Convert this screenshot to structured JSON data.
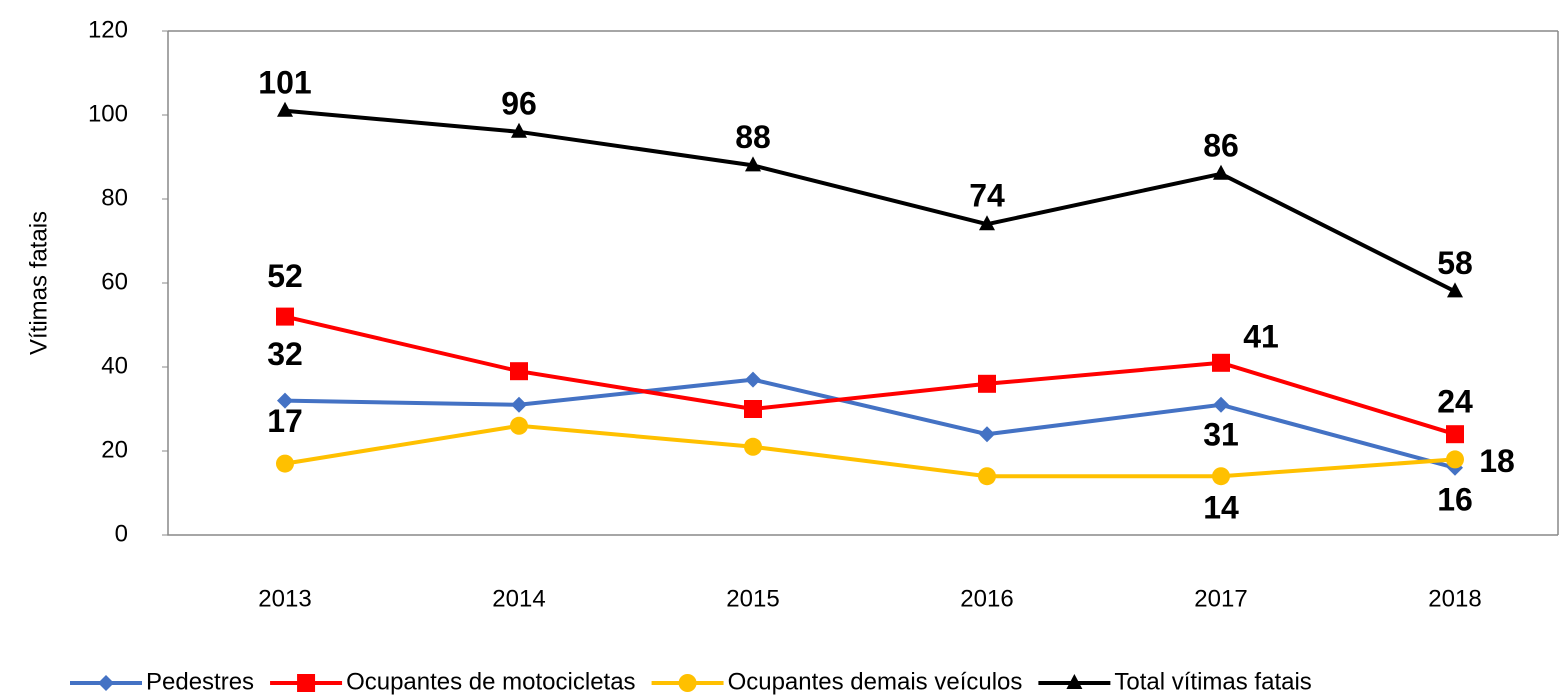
{
  "chart_data": {
    "type": "line",
    "y_label": "Vítimas fatais",
    "categories": [
      "2013",
      "2014",
      "2015",
      "2016",
      "2017",
      "2018"
    ],
    "series": [
      {
        "name": "Pedestres",
        "color": "#4472c4",
        "marker": "diamond",
        "values": [
          32,
          31,
          37,
          24,
          31,
          16
        ],
        "labels_at": [
          0,
          4,
          5
        ]
      },
      {
        "name": "Ocupantes de motocicletas",
        "color": "#ff0000",
        "marker": "square",
        "values": [
          52,
          39,
          30,
          36,
          41,
          24
        ],
        "labels_at": [
          0,
          4,
          5
        ]
      },
      {
        "name": "Ocupantes demais veículos",
        "color": "#ffc000",
        "marker": "circle",
        "values": [
          17,
          26,
          21,
          14,
          14,
          18
        ],
        "labels_at": [
          0,
          4,
          5
        ]
      },
      {
        "name": "Total vítimas fatais",
        "color": "#000000",
        "marker": "triangle",
        "values": [
          101,
          96,
          88,
          74,
          86,
          58
        ],
        "labels_at": [
          0,
          1,
          2,
          3,
          4,
          5
        ]
      }
    ],
    "ylim": [
      0,
      120
    ],
    "yticks": [
      0,
      20,
      40,
      60,
      80,
      100,
      120
    ],
    "grid": false,
    "legend": "bottom"
  }
}
